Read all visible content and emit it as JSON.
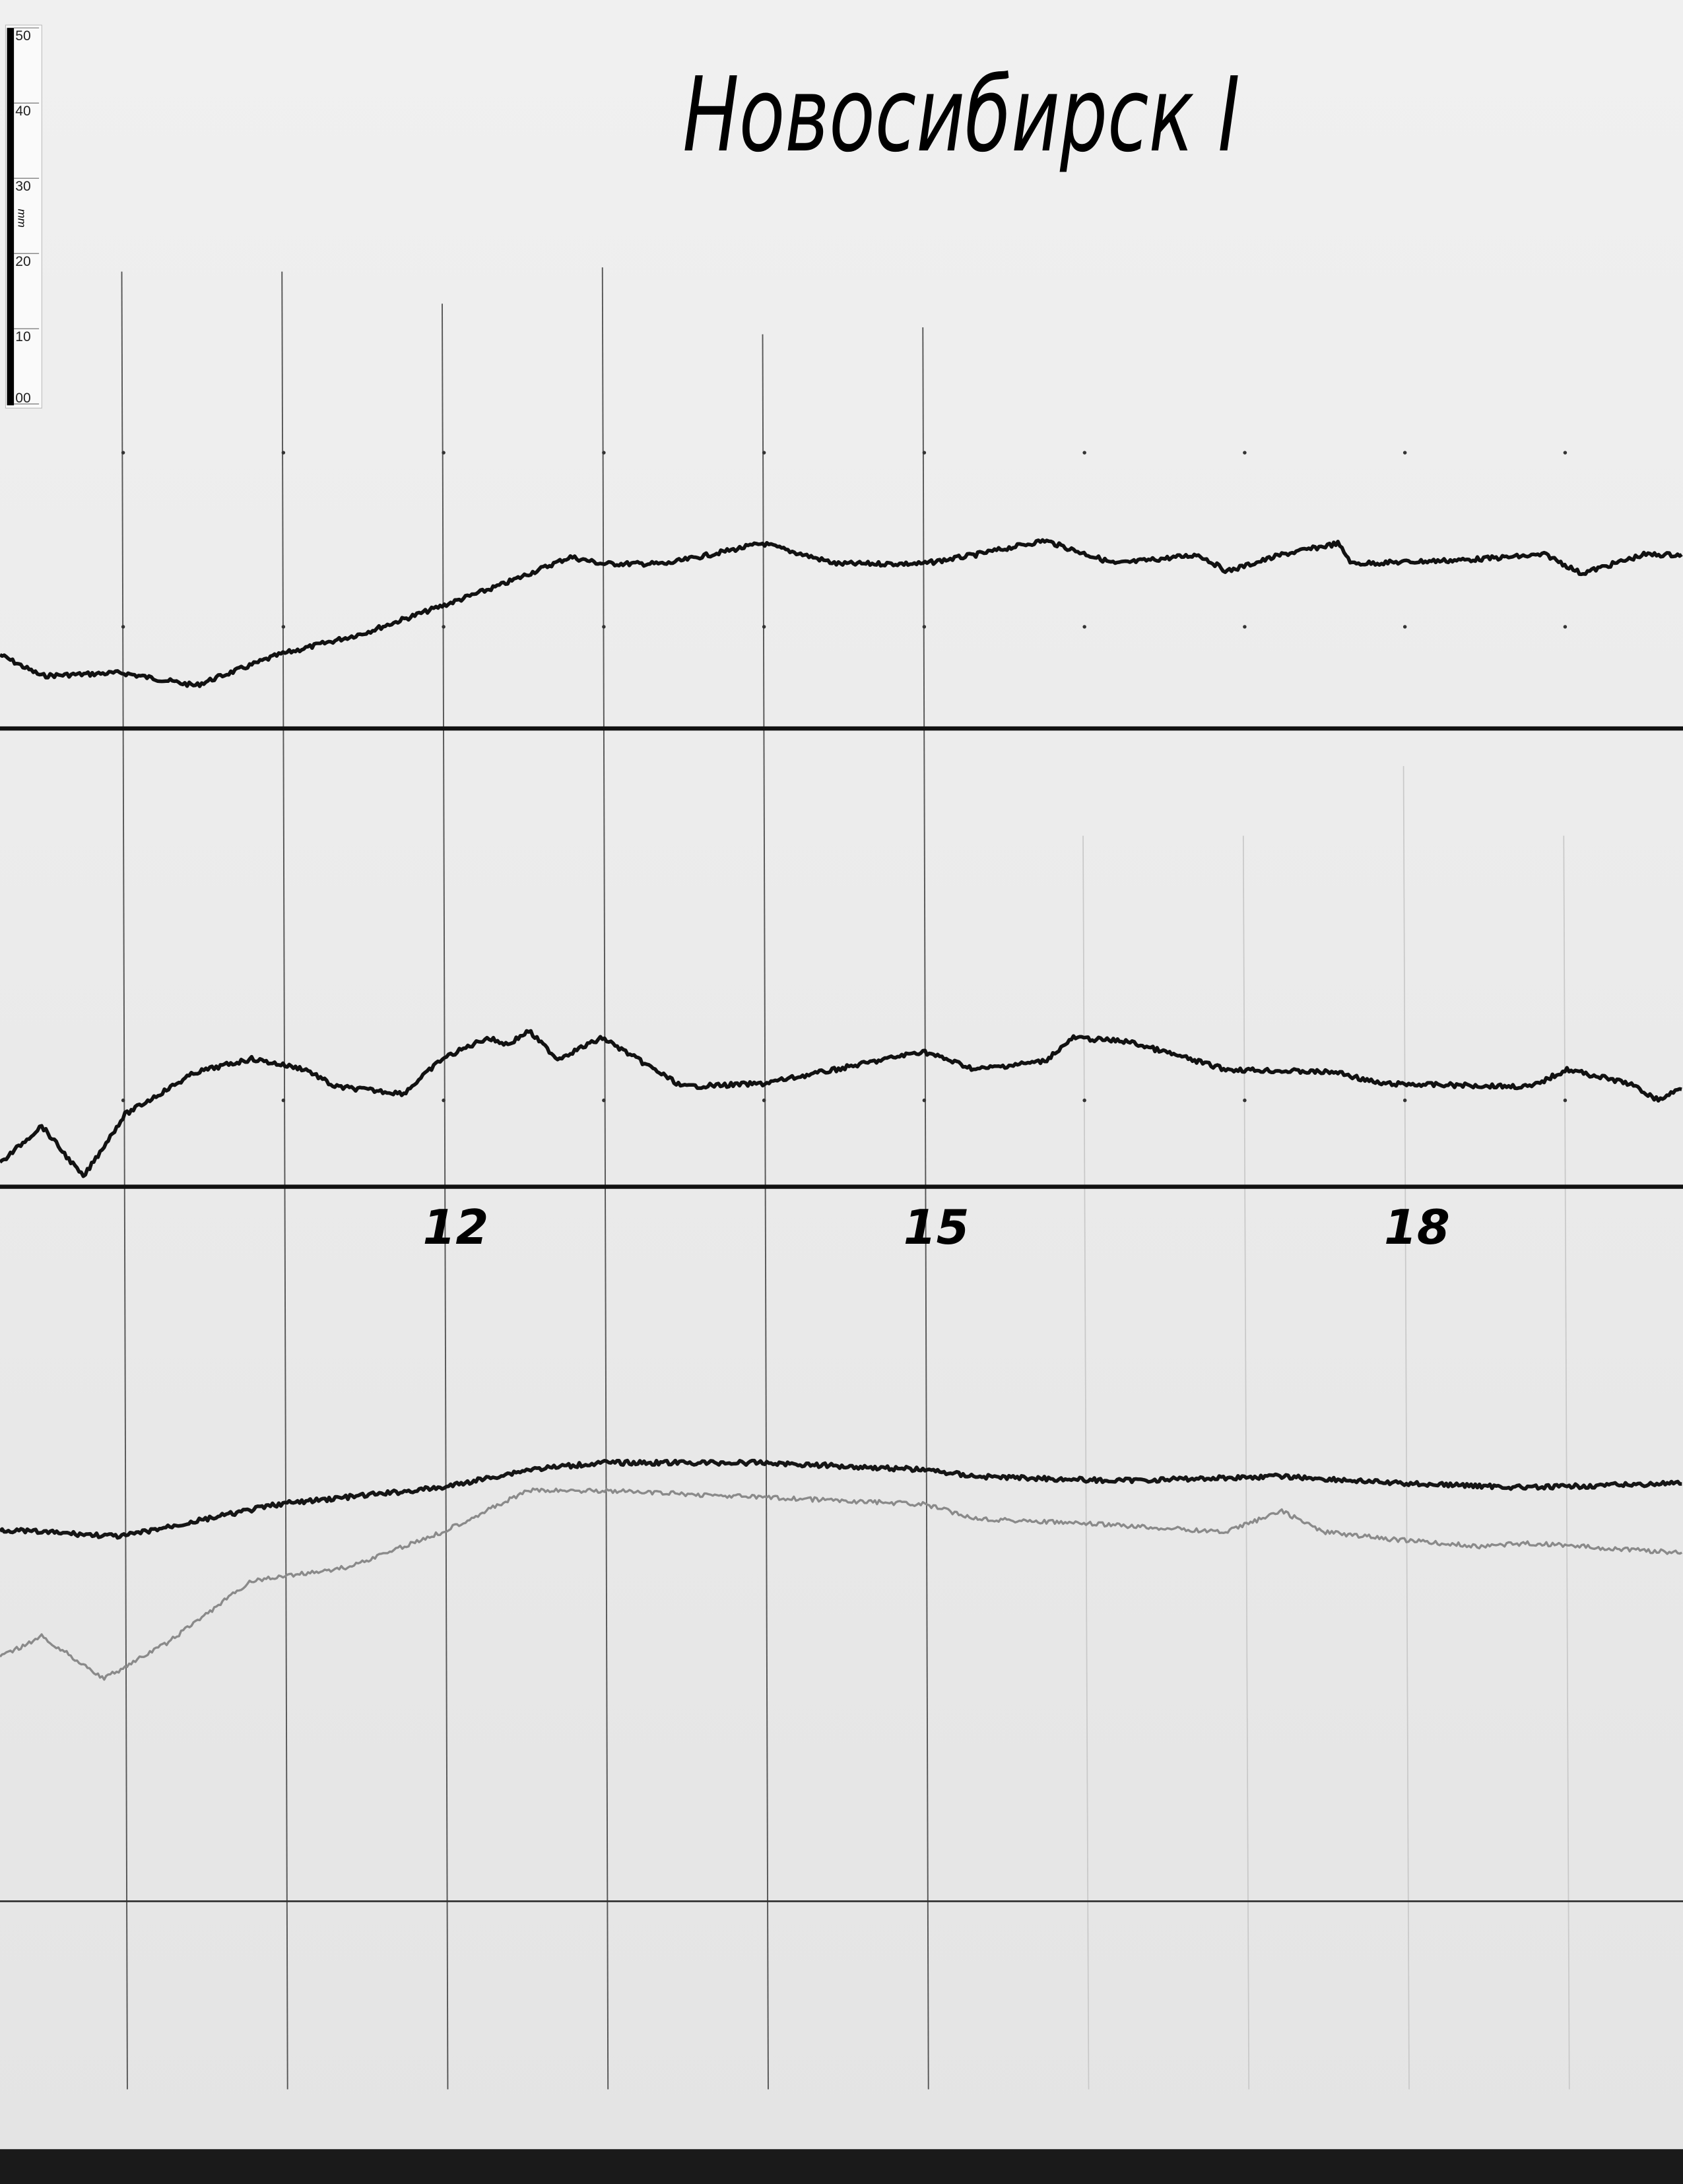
{
  "chart_data": {
    "type": "line",
    "title": "Новосибирск I",
    "xlabel": "",
    "ylabel": "",
    "x_unit_note": "hours",
    "xlim": [
      9.24,
      19.75
    ],
    "x_tick_labels": [
      {
        "x": 12,
        "label": "12"
      },
      {
        "x": 15,
        "label": "15"
      },
      {
        "x": 18,
        "label": "18"
      }
    ],
    "hour_lines": [
      10,
      11,
      12,
      13,
      14,
      15,
      16,
      17,
      18,
      19
    ],
    "scale_bar": {
      "unit": "mm",
      "labels": [
        "50",
        "40",
        "30",
        "20",
        "10",
        "00"
      ]
    },
    "grid": false,
    "series": [
      {
        "panel": 1,
        "color": "#111111",
        "x": [
          9.24,
          9.5,
          10.0,
          10.46,
          10.98,
          11.5,
          12.0,
          12.37,
          12.8,
          13.0,
          13.4,
          14.0,
          14.46,
          15.0,
          15.33,
          15.76,
          16.2,
          16.72,
          16.9,
          17.24,
          17.59,
          17.68,
          18.37,
          18.89,
          19.11,
          19.5,
          19.75
        ],
        "y": [
          9.8,
          7.0,
          7.4,
          5.7,
          9.8,
          12.6,
          16.3,
          19.1,
          22.8,
          21.9,
          21.9,
          24.6,
          21.9,
          21.9,
          23.1,
          25.0,
          21.9,
          23.1,
          20.9,
          23.1,
          24.6,
          21.9,
          22.4,
          23.1,
          20.6,
          23.1,
          23.1
        ]
      },
      {
        "panel": 2,
        "color": "#111111",
        "x": [
          9.24,
          9.5,
          9.76,
          10.02,
          10.46,
          10.81,
          11.15,
          11.33,
          11.76,
          12.0,
          12.28,
          12.41,
          12.54,
          12.72,
          13.0,
          13.5,
          14.0,
          14.46,
          15.0,
          15.33,
          15.76,
          15.94,
          16.28,
          16.89,
          17.59,
          17.85,
          18.8,
          19.02,
          19.41,
          19.59,
          19.75
        ],
        "y": [
          3.1,
          8.1,
          1.3,
          9.6,
          15.2,
          17.0,
          15.6,
          13.3,
          12.4,
          17.0,
          19.8,
          18.9,
          20.7,
          17.0,
          19.8,
          13.3,
          13.7,
          15.6,
          18.0,
          15.6,
          16.7,
          19.8,
          19.3,
          15.6,
          15.2,
          13.7,
          13.3,
          15.6,
          13.7,
          11.5,
          13.3
        ]
      },
      {
        "panel": 3,
        "color": "#151515",
        "x": [
          9.24,
          10.0,
          10.98,
          12.0,
          12.54,
          13.0,
          14.0,
          15.0,
          15.33,
          16.2,
          17.24,
          17.94,
          18.8,
          19.75
        ],
        "y": [
          49.4,
          48.5,
          52.8,
          55.0,
          57.4,
          58.3,
          58.3,
          57.4,
          56.5,
          55.9,
          56.5,
          55.6,
          55.0,
          55.6
        ]
      },
      {
        "panel": 3,
        "color": "#8a8a8a",
        "x": [
          9.24,
          9.5,
          9.89,
          10.28,
          10.81,
          11.41,
          12.0,
          12.54,
          13.0,
          14.0,
          15.0,
          15.33,
          16.2,
          16.89,
          17.24,
          17.5,
          17.94,
          18.46,
          18.8,
          19.75
        ],
        "y": [
          32.4,
          35.2,
          29.6,
          34.3,
          42.6,
          44.4,
          49.1,
          54.6,
          54.6,
          53.7,
          52.8,
          50.9,
          50.0,
          49.1,
          51.9,
          49.1,
          48.1,
          47.2,
          47.6,
          46.3
        ]
      }
    ]
  }
}
